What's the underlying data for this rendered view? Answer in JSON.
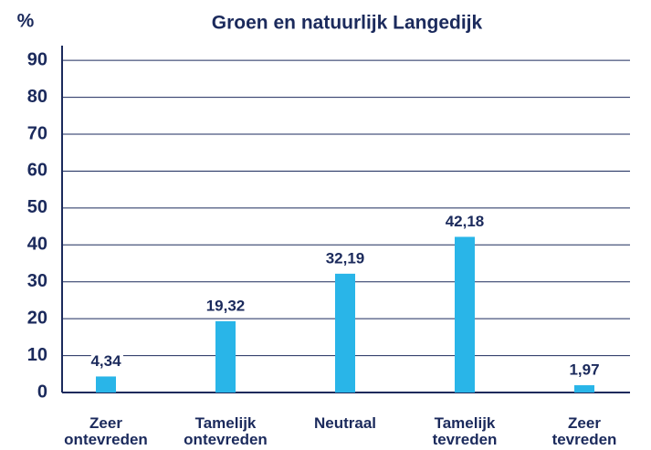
{
  "chart_data": {
    "type": "bar",
    "title": "Groen en natuurlijk Langedijk",
    "y_label": "%",
    "categories": [
      "Zeer ontevreden",
      "Tamelijk ontevreden",
      "Neutraal",
      "Tamelijk tevreden",
      "Zeer tevreden"
    ],
    "values": [
      4.34,
      19.32,
      32.19,
      42.18,
      1.97
    ],
    "value_labels": [
      "4,34",
      "19,32",
      "32,19",
      "42,18",
      "1,97"
    ],
    "color": "#29b5e8",
    "ylim": [
      0,
      94
    ],
    "yticks": [
      0,
      10,
      20,
      30,
      40,
      50,
      60,
      70,
      80,
      90
    ],
    "grid": true
  }
}
